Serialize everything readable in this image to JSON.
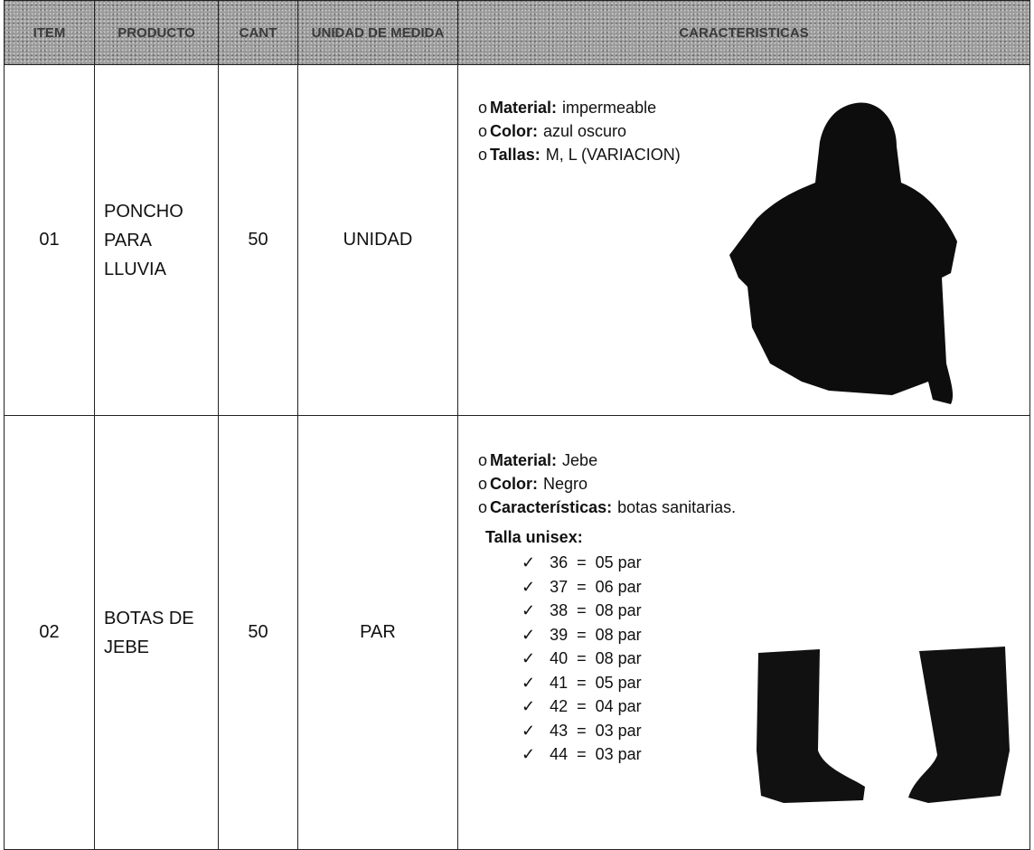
{
  "table": {
    "headers": [
      "ITEM",
      "PRODUCTO",
      "CANT",
      "UNIDAD DE MEDIDA",
      "CARACTERISTICAS"
    ],
    "rows": [
      {
        "item": "01",
        "product": "PONCHO PARA LLUVIA",
        "quantity": "50",
        "unit": "UNIDAD",
        "features": [
          {
            "label": "Material:",
            "value": "impermeable"
          },
          {
            "label": "Color:",
            "value": "azul oscuro"
          },
          {
            "label": "Tallas:",
            "value": "M, L (VARIACION)"
          }
        ]
      },
      {
        "item": "02",
        "product": "BOTAS DE JEBE",
        "quantity": "50",
        "unit": "PAR",
        "features": [
          {
            "label": "Material:",
            "value": "Jebe"
          },
          {
            "label": "Color:",
            "value": "Negro"
          },
          {
            "label": "Características:",
            "value": "botas sanitarias."
          }
        ],
        "sizes_title": "Talla unisex:",
        "sizes": [
          "36  =  05 par",
          "37  =  06 par",
          "38  =  08 par",
          "39  =  08 par",
          "40  =  08 par",
          "41  =  05 par",
          "42  =  04 par",
          "43  =  03 par",
          "44  =  03 par"
        ]
      }
    ]
  }
}
